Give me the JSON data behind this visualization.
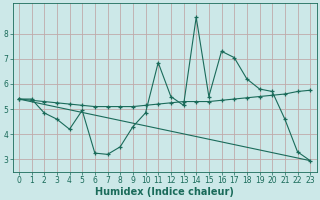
{
  "xlabel": "Humidex (Indice chaleur)",
  "background_color": "#cce8e8",
  "grid_color": "#c0aaaa",
  "line_color": "#1a6b5a",
  "xlim": [
    -0.5,
    23.5
  ],
  "ylim": [
    2.5,
    9.2
  ],
  "xticks": [
    0,
    1,
    2,
    3,
    4,
    5,
    6,
    7,
    8,
    9,
    10,
    11,
    12,
    13,
    14,
    15,
    16,
    17,
    18,
    19,
    20,
    21,
    22,
    23
  ],
  "yticks": [
    3,
    4,
    5,
    6,
    7,
    8
  ],
  "line1_x": [
    0,
    1,
    2,
    3,
    4,
    5,
    6,
    7,
    8,
    9,
    10,
    11,
    12,
    13,
    14,
    15,
    16,
    17,
    18,
    19,
    20,
    21,
    22,
    23
  ],
  "line1_y": [
    5.4,
    5.4,
    4.85,
    4.6,
    4.2,
    4.95,
    3.25,
    3.2,
    3.5,
    4.3,
    4.85,
    6.85,
    5.5,
    5.15,
    8.65,
    5.5,
    7.3,
    7.05,
    6.2,
    5.8,
    5.7,
    4.6,
    3.3,
    2.95
  ],
  "line2_x": [
    0,
    1,
    2,
    3,
    4,
    5,
    6,
    7,
    8,
    9,
    10,
    11,
    12,
    13,
    14,
    15,
    16,
    17,
    18,
    19,
    20,
    21,
    22,
    23
  ],
  "line2_y": [
    5.4,
    5.35,
    5.3,
    5.25,
    5.2,
    5.15,
    5.1,
    5.1,
    5.1,
    5.1,
    5.15,
    5.2,
    5.25,
    5.3,
    5.3,
    5.3,
    5.35,
    5.4,
    5.45,
    5.5,
    5.55,
    5.6,
    5.7,
    5.75
  ],
  "line3_x": [
    0,
    23
  ],
  "line3_y": [
    5.4,
    2.95
  ],
  "xlabel_fontsize": 7,
  "tick_fontsize": 5.5
}
